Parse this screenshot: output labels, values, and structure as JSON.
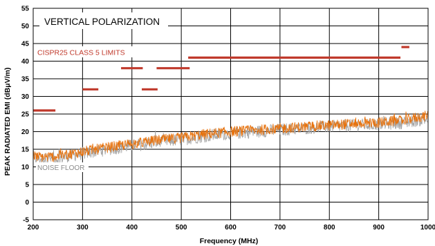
{
  "chart_data": {
    "type": "line",
    "xlabel": "Frequency (MHz)",
    "ylabel": "PEAK RADIATED EMI (dBμV/m)",
    "xlim": [
      200,
      1000
    ],
    "ylim": [
      -5,
      55
    ],
    "x_ticks": [
      "200",
      "300",
      "400",
      "500",
      "600",
      "700",
      "800",
      "900",
      "1000"
    ],
    "y_ticks": [
      "55",
      "50",
      "45",
      "40",
      "35",
      "30",
      "25",
      "20",
      "15",
      "10",
      "5",
      "0",
      "-5"
    ],
    "grid": true,
    "annotations": {
      "title": "VERTICAL POLARIZATION",
      "limits_label": "CISPR25 CLASS 5 LIMITS",
      "noise_floor_label": "NOISE FLOOR"
    },
    "colors": {
      "emi": "#E8720C",
      "noise_floor": "#A6A6A6",
      "limits": "#C0392B",
      "grid": "#000000"
    },
    "limit_segments": [
      {
        "x": [
          200,
          245
        ],
        "y": 26
      },
      {
        "x": [
          300,
          332
        ],
        "y": 32
      },
      {
        "x": [
          378,
          422
        ],
        "y": 38
      },
      {
        "x": [
          420,
          452
        ],
        "y": 32
      },
      {
        "x": [
          450,
          517
        ],
        "y": 38
      },
      {
        "x": [
          514,
          944
        ],
        "y": 41
      },
      {
        "x": [
          946,
          962
        ],
        "y": 44
      }
    ],
    "series": [
      {
        "role": "emi",
        "x": [
          200,
          220,
          250,
          300,
          350,
          400,
          450,
          500,
          550,
          600,
          650,
          700,
          750,
          800,
          850,
          900,
          950,
          975,
          1000
        ],
        "y": [
          13,
          12.8,
          13,
          14.3,
          15.5,
          16.5,
          17.5,
          18.3,
          19.3,
          20,
          20.4,
          20.9,
          21.4,
          21.8,
          22.3,
          22.6,
          23.2,
          24,
          24.5
        ]
      },
      {
        "role": "noise_floor",
        "x": [
          200,
          220,
          250,
          300,
          350,
          400,
          450,
          500,
          550,
          600,
          650,
          700,
          750,
          800,
          850,
          900,
          950,
          975,
          1000
        ],
        "y": [
          12.5,
          12.3,
          12.4,
          13.8,
          15,
          16,
          17,
          17.8,
          18.8,
          19.5,
          20,
          20.5,
          21,
          21.4,
          21.8,
          22.1,
          22.6,
          23.2,
          23.5
        ]
      }
    ]
  }
}
